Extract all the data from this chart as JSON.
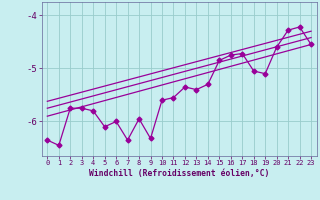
{
  "xlabel": "Windchill (Refroidissement éolien,°C)",
  "bg_color": "#c8eef0",
  "line_color": "#990099",
  "grid_color": "#99cccc",
  "xlim": [
    -0.5,
    23.5
  ],
  "ylim": [
    -6.65,
    -3.75
  ],
  "yticks": [
    -6,
    -5,
    -4
  ],
  "xticks": [
    0,
    1,
    2,
    3,
    4,
    5,
    6,
    7,
    8,
    9,
    10,
    11,
    12,
    13,
    14,
    15,
    16,
    17,
    18,
    19,
    20,
    21,
    22,
    23
  ],
  "series1_x": [
    0,
    1,
    2,
    3,
    4,
    5,
    6,
    7,
    8,
    9,
    10,
    11,
    12,
    13,
    14,
    15,
    16,
    17,
    18,
    19,
    20,
    21,
    22,
    23
  ],
  "series1_y": [
    -6.35,
    -6.45,
    -5.75,
    -5.75,
    -5.8,
    -6.1,
    -6.0,
    -6.35,
    -5.95,
    -6.32,
    -5.6,
    -5.55,
    -5.35,
    -5.4,
    -5.3,
    -4.85,
    -4.75,
    -4.72,
    -5.05,
    -5.1,
    -4.6,
    -4.28,
    -4.22,
    -4.55
  ],
  "trend1_x": [
    0,
    23
  ],
  "trend1_y": [
    -5.9,
    -4.55
  ],
  "trend2_x": [
    0,
    23
  ],
  "trend2_y": [
    -5.75,
    -4.42
  ],
  "trend3_x": [
    0,
    23
  ],
  "trend3_y": [
    -5.62,
    -4.3
  ],
  "marker": "D",
  "markersize": 2.5,
  "linewidth": 0.9
}
